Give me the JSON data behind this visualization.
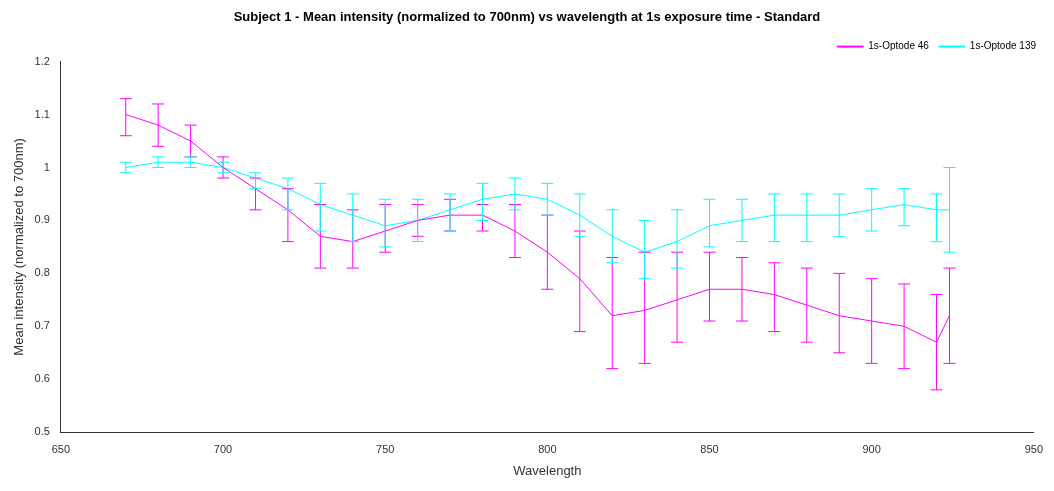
{
  "chart_data": {
    "type": "line",
    "title": "Subject 1 - Mean intensity (normalized to 700nm) vs wavelength at 1s exposure time - Standard",
    "xlabel": "Wavelength",
    "ylabel": "Mean intensity (normalized to 700nm)",
    "x": [
      670,
      680,
      690,
      700,
      710,
      720,
      730,
      740,
      750,
      760,
      770,
      780,
      790,
      800,
      810,
      820,
      830,
      840,
      850,
      860,
      870,
      880,
      890,
      900,
      910,
      920,
      924
    ],
    "xlim": [
      650,
      950
    ],
    "xticks": [
      650,
      700,
      750,
      800,
      850,
      900,
      950
    ],
    "ylim": [
      0.5,
      1.2
    ],
    "yticks": [
      0.5,
      0.6,
      0.7,
      0.8,
      0.9,
      1,
      1.1,
      1.2
    ],
    "grid": false,
    "legend": "top right",
    "marker": "none",
    "line_style": "solid",
    "series": [
      {
        "name": "1s-Optode 46",
        "color": "#ff00ff",
        "values": [
          1.1,
          1.08,
          1.05,
          1.0,
          0.96,
          0.92,
          0.87,
          0.86,
          0.88,
          0.9,
          0.91,
          0.91,
          0.88,
          0.84,
          0.79,
          0.72,
          0.73,
          0.75,
          0.77,
          0.77,
          0.76,
          0.74,
          0.72,
          0.71,
          0.7,
          0.67,
          0.72
        ],
        "errors": [
          [
            1.06,
            1.13
          ],
          [
            1.04,
            1.12
          ],
          [
            1.02,
            1.08
          ],
          [
            0.98,
            1.02
          ],
          [
            0.92,
            0.98
          ],
          [
            0.86,
            0.96
          ],
          [
            0.81,
            0.93
          ],
          [
            0.81,
            0.92
          ],
          [
            0.84,
            0.93
          ],
          [
            0.87,
            0.93
          ],
          [
            0.88,
            0.94
          ],
          [
            0.88,
            0.93
          ],
          [
            0.83,
            0.93
          ],
          [
            0.77,
            0.91
          ],
          [
            0.69,
            0.88
          ],
          [
            0.62,
            0.83
          ],
          [
            0.63,
            0.84
          ],
          [
            0.67,
            0.84
          ],
          [
            0.71,
            0.84
          ],
          [
            0.71,
            0.83
          ],
          [
            0.69,
            0.82
          ],
          [
            0.67,
            0.81
          ],
          [
            0.65,
            0.8
          ],
          [
            0.63,
            0.79
          ],
          [
            0.62,
            0.78
          ],
          [
            0.58,
            0.76
          ],
          [
            0.63,
            0.81
          ]
        ]
      },
      {
        "name": "1s-Optode 139",
        "color": "#00ffff",
        "values": [
          1.0,
          1.01,
          1.01,
          1.0,
          0.98,
          0.96,
          0.93,
          0.91,
          0.89,
          0.9,
          0.92,
          0.94,
          0.95,
          0.94,
          0.91,
          0.87,
          0.84,
          0.86,
          0.89,
          0.9,
          0.91,
          0.91,
          0.91,
          0.92,
          0.93,
          0.92,
          0.92
        ],
        "errors": [
          [
            0.99,
            1.01
          ],
          [
            1.0,
            1.02
          ],
          [
            1.0,
            1.02
          ],
          [
            0.99,
            1.01
          ],
          [
            0.96,
            0.99
          ],
          [
            0.92,
            0.98
          ],
          [
            0.88,
            0.97
          ],
          [
            0.86,
            0.95
          ],
          [
            0.85,
            0.94
          ],
          [
            0.86,
            0.94
          ],
          [
            0.88,
            0.95
          ],
          [
            0.9,
            0.97
          ],
          [
            0.92,
            0.98
          ],
          [
            0.91,
            0.97
          ],
          [
            0.87,
            0.95
          ],
          [
            0.82,
            0.92
          ],
          [
            0.79,
            0.9
          ],
          [
            0.81,
            0.92
          ],
          [
            0.85,
            0.94
          ],
          [
            0.86,
            0.94
          ],
          [
            0.86,
            0.95
          ],
          [
            0.86,
            0.95
          ],
          [
            0.87,
            0.95
          ],
          [
            0.88,
            0.96
          ],
          [
            0.89,
            0.96
          ],
          [
            0.86,
            0.95
          ],
          [
            0.84,
            1.0
          ]
        ]
      }
    ]
  }
}
